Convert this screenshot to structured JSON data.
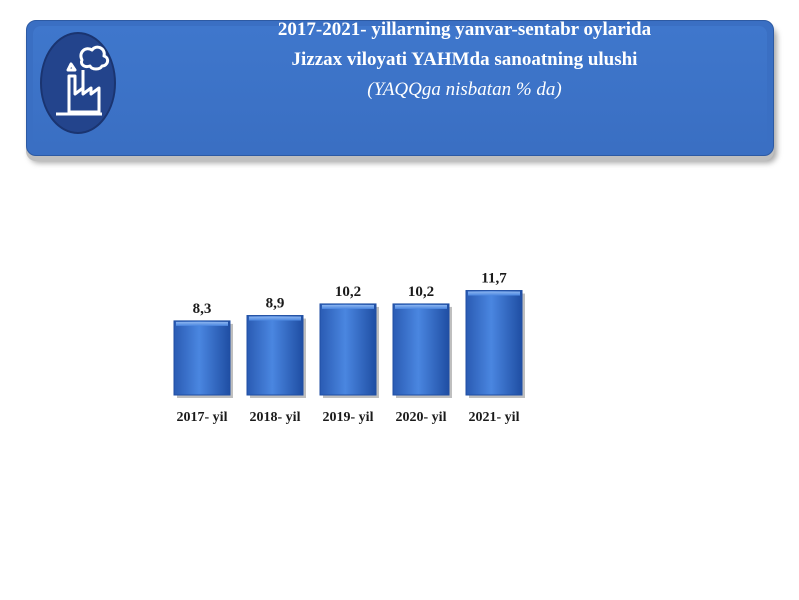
{
  "header": {
    "title_line1": "2017-2021- yillarning yanvar-sentabr oylarida",
    "title_line2": "Jizzax viloyati YAHMda sanoatning ulushi",
    "subtitle": "(YAQQga nisbatan % da)",
    "icon": "factory-icon"
  },
  "colors": {
    "banner": "#3a6fc3",
    "bar": "#3f78d6",
    "bar_dark": "#1f4ea3",
    "text": "#1a1a1a"
  },
  "chart_data": {
    "type": "bar",
    "title": "",
    "xlabel": "",
    "ylabel": "",
    "categories": [
      "2017- yil",
      "2018- yil",
      "2019- yil",
      "2020- yil",
      "2021- yil"
    ],
    "values": [
      8.3,
      8.9,
      10.2,
      10.2,
      11.7
    ],
    "value_labels": [
      "8,3",
      "8,9",
      "10,2",
      "10,2",
      "11,7"
    ],
    "ylim": [
      0,
      14
    ],
    "grid": false,
    "legend": "none"
  }
}
